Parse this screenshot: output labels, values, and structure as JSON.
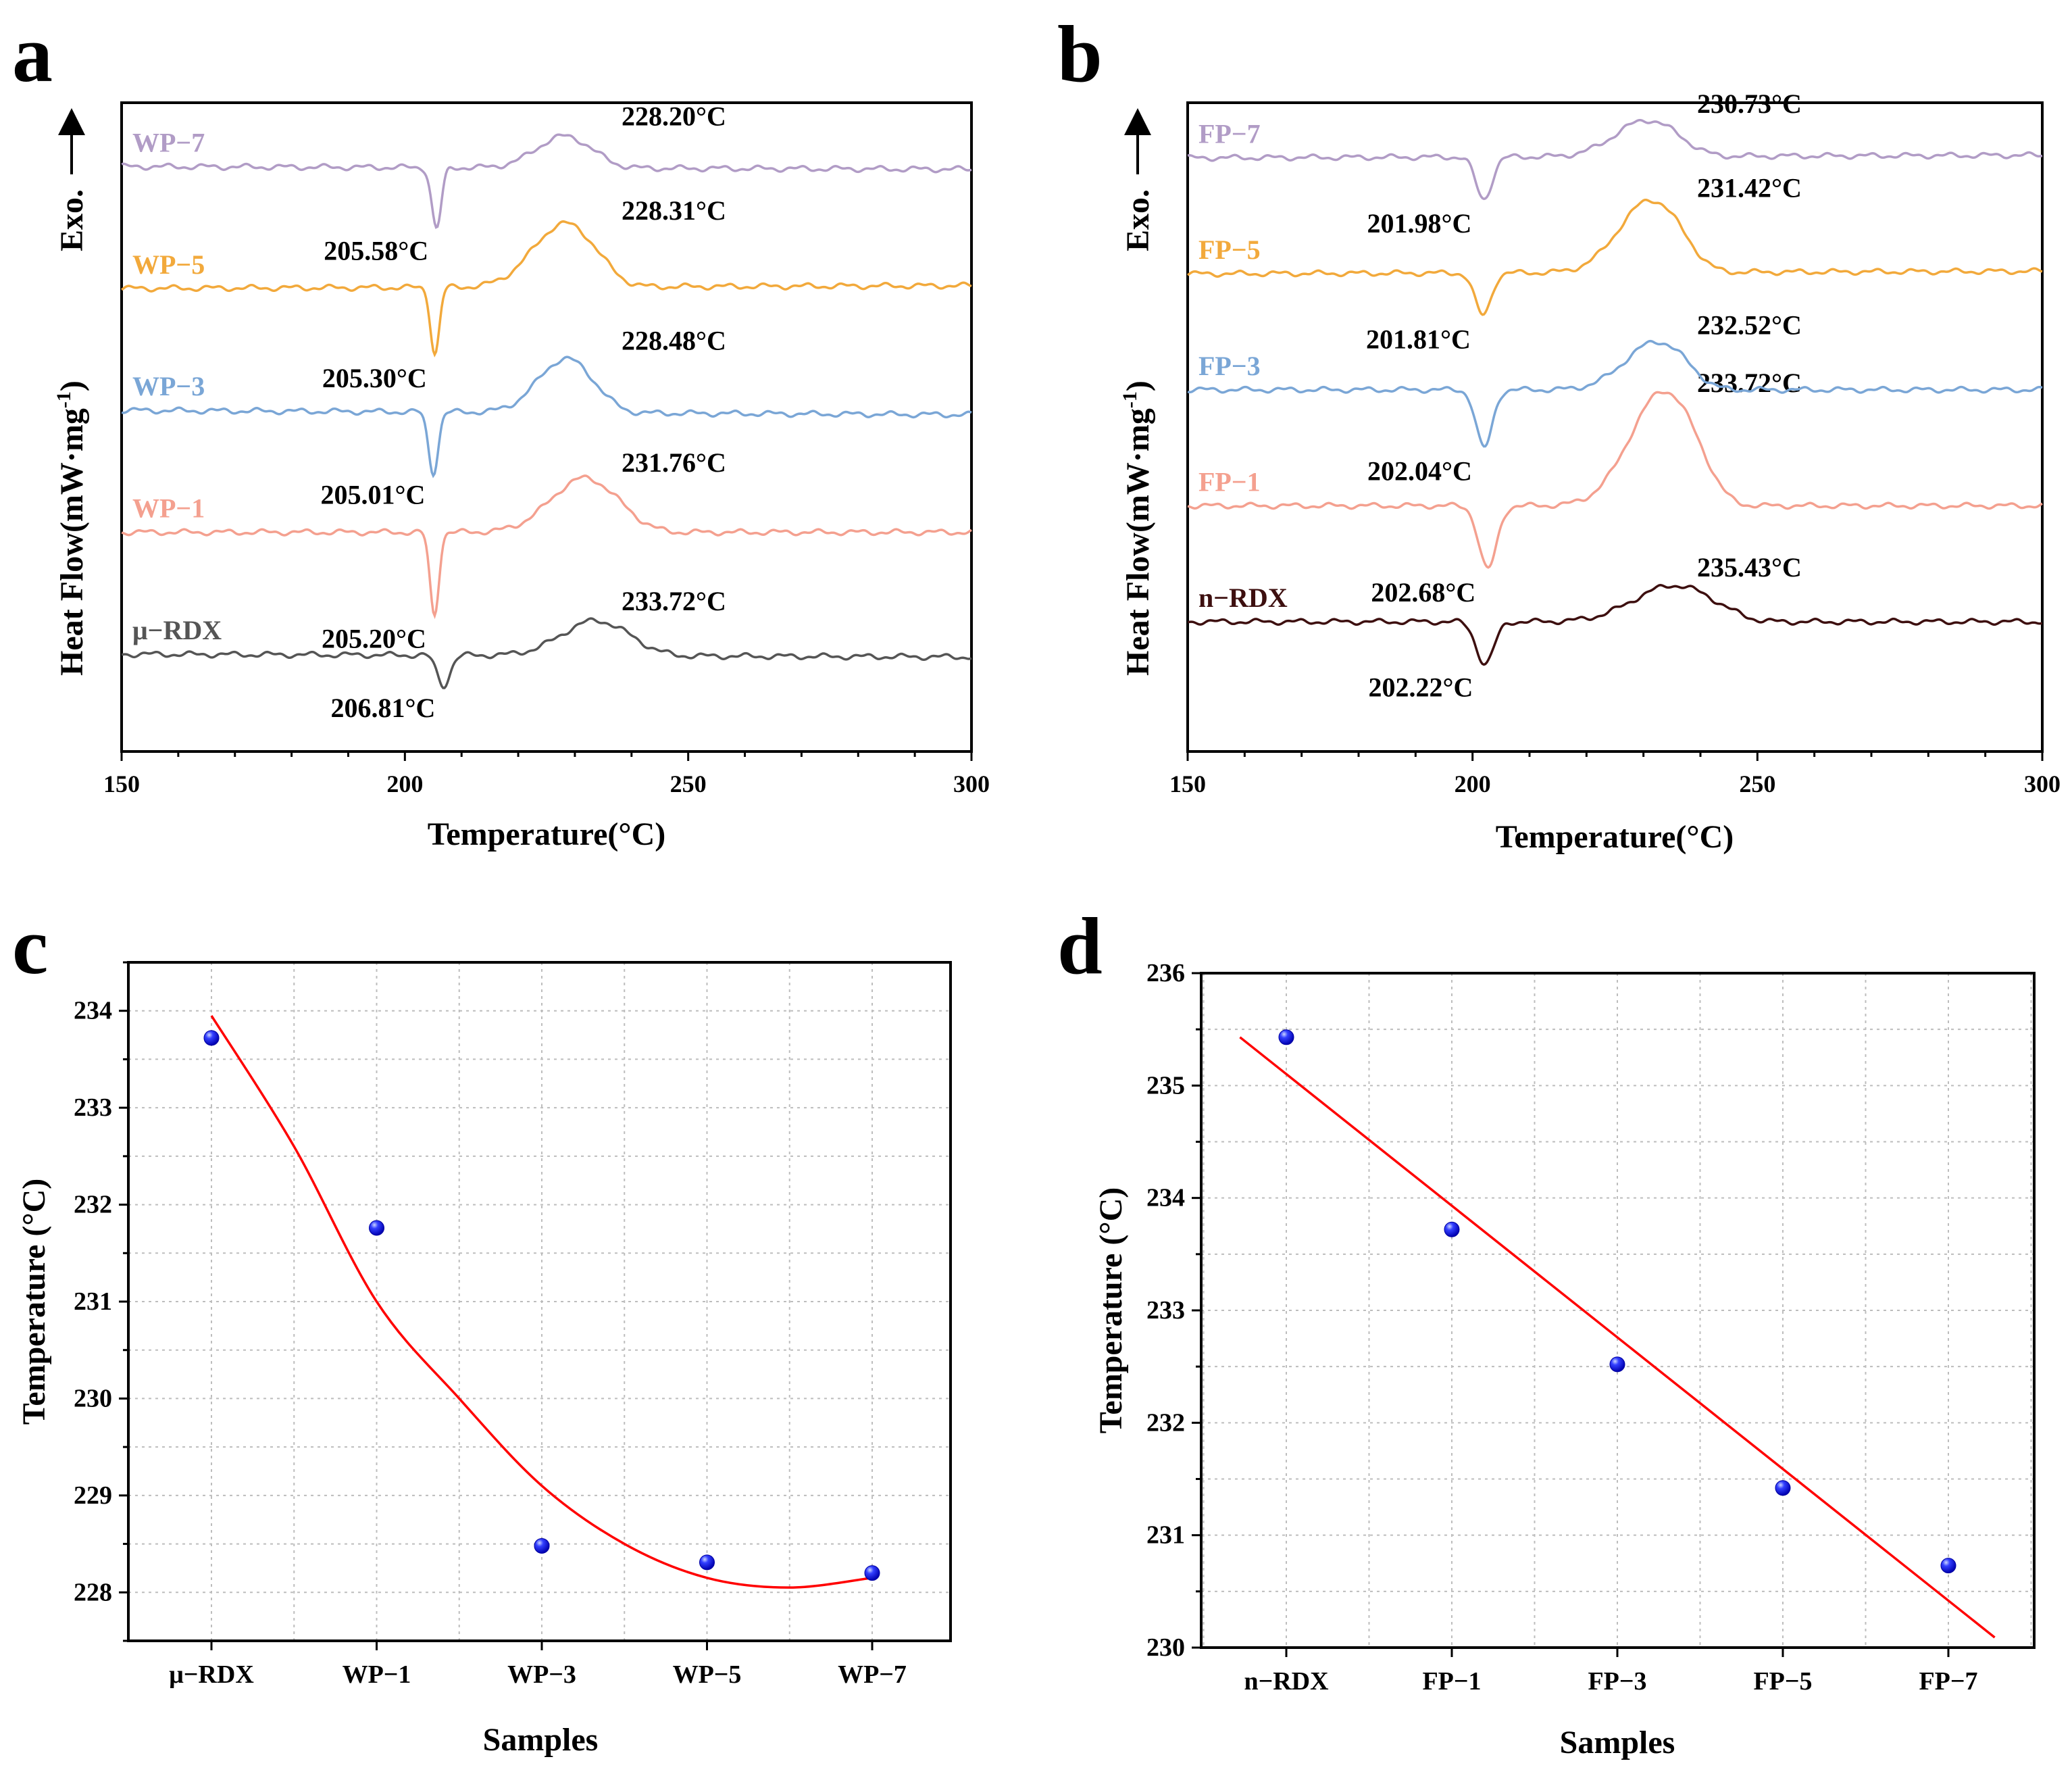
{
  "panels": {
    "a": "a",
    "b": "b",
    "c": "c",
    "d": "d"
  },
  "chart_data": [
    {
      "id": "a",
      "type": "line",
      "title": "",
      "xlabel": "Temperature(°C)",
      "ylabel": "Heat Flow(mW·mg",
      "ylabel_sup": "-1",
      "ylabel_close": ")",
      "exo_label": "Exo.",
      "xlim": [
        150,
        300
      ],
      "xticks": [
        "150",
        "200",
        "250",
        "300"
      ],
      "series": [
        {
          "name": "μ−RDX",
          "color": "#555555",
          "offset": 0,
          "base_left": 0.0,
          "base_right": -0.5,
          "dip": {
            "x": 206.81,
            "depth": 5.5,
            "width": 1.6
          },
          "hump": {
            "x": 233.72,
            "height": 5.5,
            "width": 8.5,
            "start": 208,
            "end": 248
          },
          "labels": {
            "dip": "206.81°C",
            "peak": "233.72°C"
          }
        },
        {
          "name": "WP−1",
          "color": "#f4a08f",
          "offset": 22,
          "base_left": 0.0,
          "base_right": 0.0,
          "dip": {
            "x": 205.2,
            "depth": 15,
            "width": 1.1
          },
          "hump": {
            "x": 231.76,
            "height": 8.5,
            "width": 8.5,
            "start": 206,
            "end": 246
          },
          "labels": {
            "dip": "205.20°C",
            "peak": "231.76°C"
          }
        },
        {
          "name": "WP−3",
          "color": "#7aa6d6",
          "offset": 44,
          "base_left": 0.0,
          "base_right": -0.8,
          "dip": {
            "x": 205.01,
            "depth": 11,
            "width": 1.2
          },
          "hump": {
            "x": 228.48,
            "height": 8.5,
            "width": 7,
            "start": 206,
            "end": 240
          },
          "labels": {
            "dip": "205.01°C",
            "peak": "228.48°C"
          }
        },
        {
          "name": "WP−5",
          "color": "#f2a93b",
          "offset": 66,
          "base_left": 0.0,
          "base_right": 0.5,
          "dip": {
            "x": 205.3,
            "depth": 12,
            "width": 1.1
          },
          "hump": {
            "x": 228.31,
            "height": 10,
            "width": 8,
            "start": 206,
            "end": 240
          },
          "labels": {
            "dip": "205.30°C",
            "peak": "228.31°C"
          }
        },
        {
          "name": "WP−7",
          "color": "#b19cc6",
          "offset": 88,
          "base_left": 0.0,
          "base_right": -0.5,
          "dip": {
            "x": 205.58,
            "depth": 11,
            "width": 1.2
          },
          "hump": {
            "x": 228.2,
            "height": 5,
            "width": 7,
            "start": 206,
            "end": 240
          },
          "labels": {
            "dip": "205.58°C",
            "peak": "228.20°C"
          }
        }
      ]
    },
    {
      "id": "b",
      "type": "line",
      "title": "",
      "xlabel": "Temperature(°C)",
      "ylabel": "Heat Flow(mW·mg",
      "ylabel_sup": "-1",
      "ylabel_close": ")",
      "exo_label": "Exo.",
      "xlim": [
        150,
        300
      ],
      "xticks": [
        "150",
        "200",
        "250",
        "300"
      ],
      "series": [
        {
          "name": "n−RDX",
          "color": "#3d0f0f",
          "offset": 0,
          "base_left": 0.0,
          "base_right": 0.0,
          "dip": {
            "x": 202.22,
            "depth": 8,
            "width": 2.2
          },
          "hump": {
            "x": 235.43,
            "height": 6,
            "width": 10,
            "start": 204,
            "end": 250
          },
          "labels": {
            "dip": "202.22°C",
            "peak": "235.43°C"
          }
        },
        {
          "name": "FP−1",
          "color": "#f4a08f",
          "offset": 22,
          "base_left": 0.0,
          "base_right": 0.0,
          "dip": {
            "x": 202.68,
            "depth": 12,
            "width": 2.2
          },
          "hump": {
            "x": 233.72,
            "height": 19,
            "width": 8.5,
            "start": 206,
            "end": 245
          },
          "labels": {
            "dip": "202.68°C",
            "peak": "233.72°C"
          }
        },
        {
          "name": "FP−3",
          "color": "#7aa6d6",
          "offset": 44,
          "base_left": 0.0,
          "base_right": 0.0,
          "dip": {
            "x": 202.04,
            "depth": 11,
            "width": 2.0
          },
          "hump": {
            "x": 232.52,
            "height": 8,
            "width": 8,
            "start": 206,
            "end": 242
          },
          "labels": {
            "dip": "202.04°C",
            "peak": "232.52°C"
          }
        },
        {
          "name": "FP−5",
          "color": "#f2a93b",
          "offset": 66,
          "base_left": 0.0,
          "base_right": 0.5,
          "dip": {
            "x": 201.81,
            "depth": 8,
            "width": 2.0
          },
          "hump": {
            "x": 231.42,
            "height": 12,
            "width": 8,
            "start": 206,
            "end": 242
          },
          "labels": {
            "dip": "201.81°C",
            "peak": "231.42°C"
          }
        },
        {
          "name": "FP−7",
          "color": "#b19cc6",
          "offset": 88,
          "base_left": 0.0,
          "base_right": 0.5,
          "dip": {
            "x": 201.98,
            "depth": 8,
            "width": 2.0
          },
          "hump": {
            "x": 230.73,
            "height": 6,
            "width": 8,
            "start": 206,
            "end": 242
          },
          "labels": {
            "dip": "201.98°C",
            "peak": "230.73°C"
          }
        }
      ]
    },
    {
      "id": "c",
      "type": "scatter",
      "title": "",
      "xlabel": "Samples",
      "ylabel": "Temperature (°C)",
      "categories": [
        "μ−RDX",
        "WP−1",
        "WP−3",
        "WP−5",
        "WP−7"
      ],
      "values": [
        233.72,
        231.76,
        228.48,
        228.31,
        228.2
      ],
      "ylim": [
        227.5,
        234.5
      ],
      "yticks": [
        "228",
        "229",
        "230",
        "231",
        "232",
        "233",
        "234"
      ],
      "fit": {
        "type": "polynomial",
        "points": [
          [
            0,
            233.95
          ],
          [
            0.5,
            232.6
          ],
          [
            1,
            231.0
          ],
          [
            1.5,
            230.0
          ],
          [
            2,
            229.1
          ],
          [
            2.5,
            228.5
          ],
          [
            3,
            228.15
          ],
          [
            3.5,
            228.05
          ],
          [
            4,
            228.15
          ]
        ]
      },
      "marker_color": "#1a1aff",
      "fit_color": "#ff0000",
      "grid": true
    },
    {
      "id": "d",
      "type": "scatter",
      "title": "",
      "xlabel": "Samples",
      "ylabel": "Temperature (°C)",
      "categories": [
        "n−RDX",
        "FP−1",
        "FP−3",
        "FP−5",
        "FP−7"
      ],
      "values": [
        235.43,
        233.72,
        232.52,
        231.42,
        230.73
      ],
      "ylim": [
        230,
        236
      ],
      "yticks": [
        "230",
        "231",
        "232",
        "233",
        "234",
        "235",
        "236"
      ],
      "fit": {
        "type": "linear",
        "points": [
          [
            -0.28,
            235.43
          ],
          [
            4.28,
            230.09
          ]
        ]
      },
      "marker_color": "#1a1aff",
      "fit_color": "#ff0000",
      "grid": true
    }
  ]
}
